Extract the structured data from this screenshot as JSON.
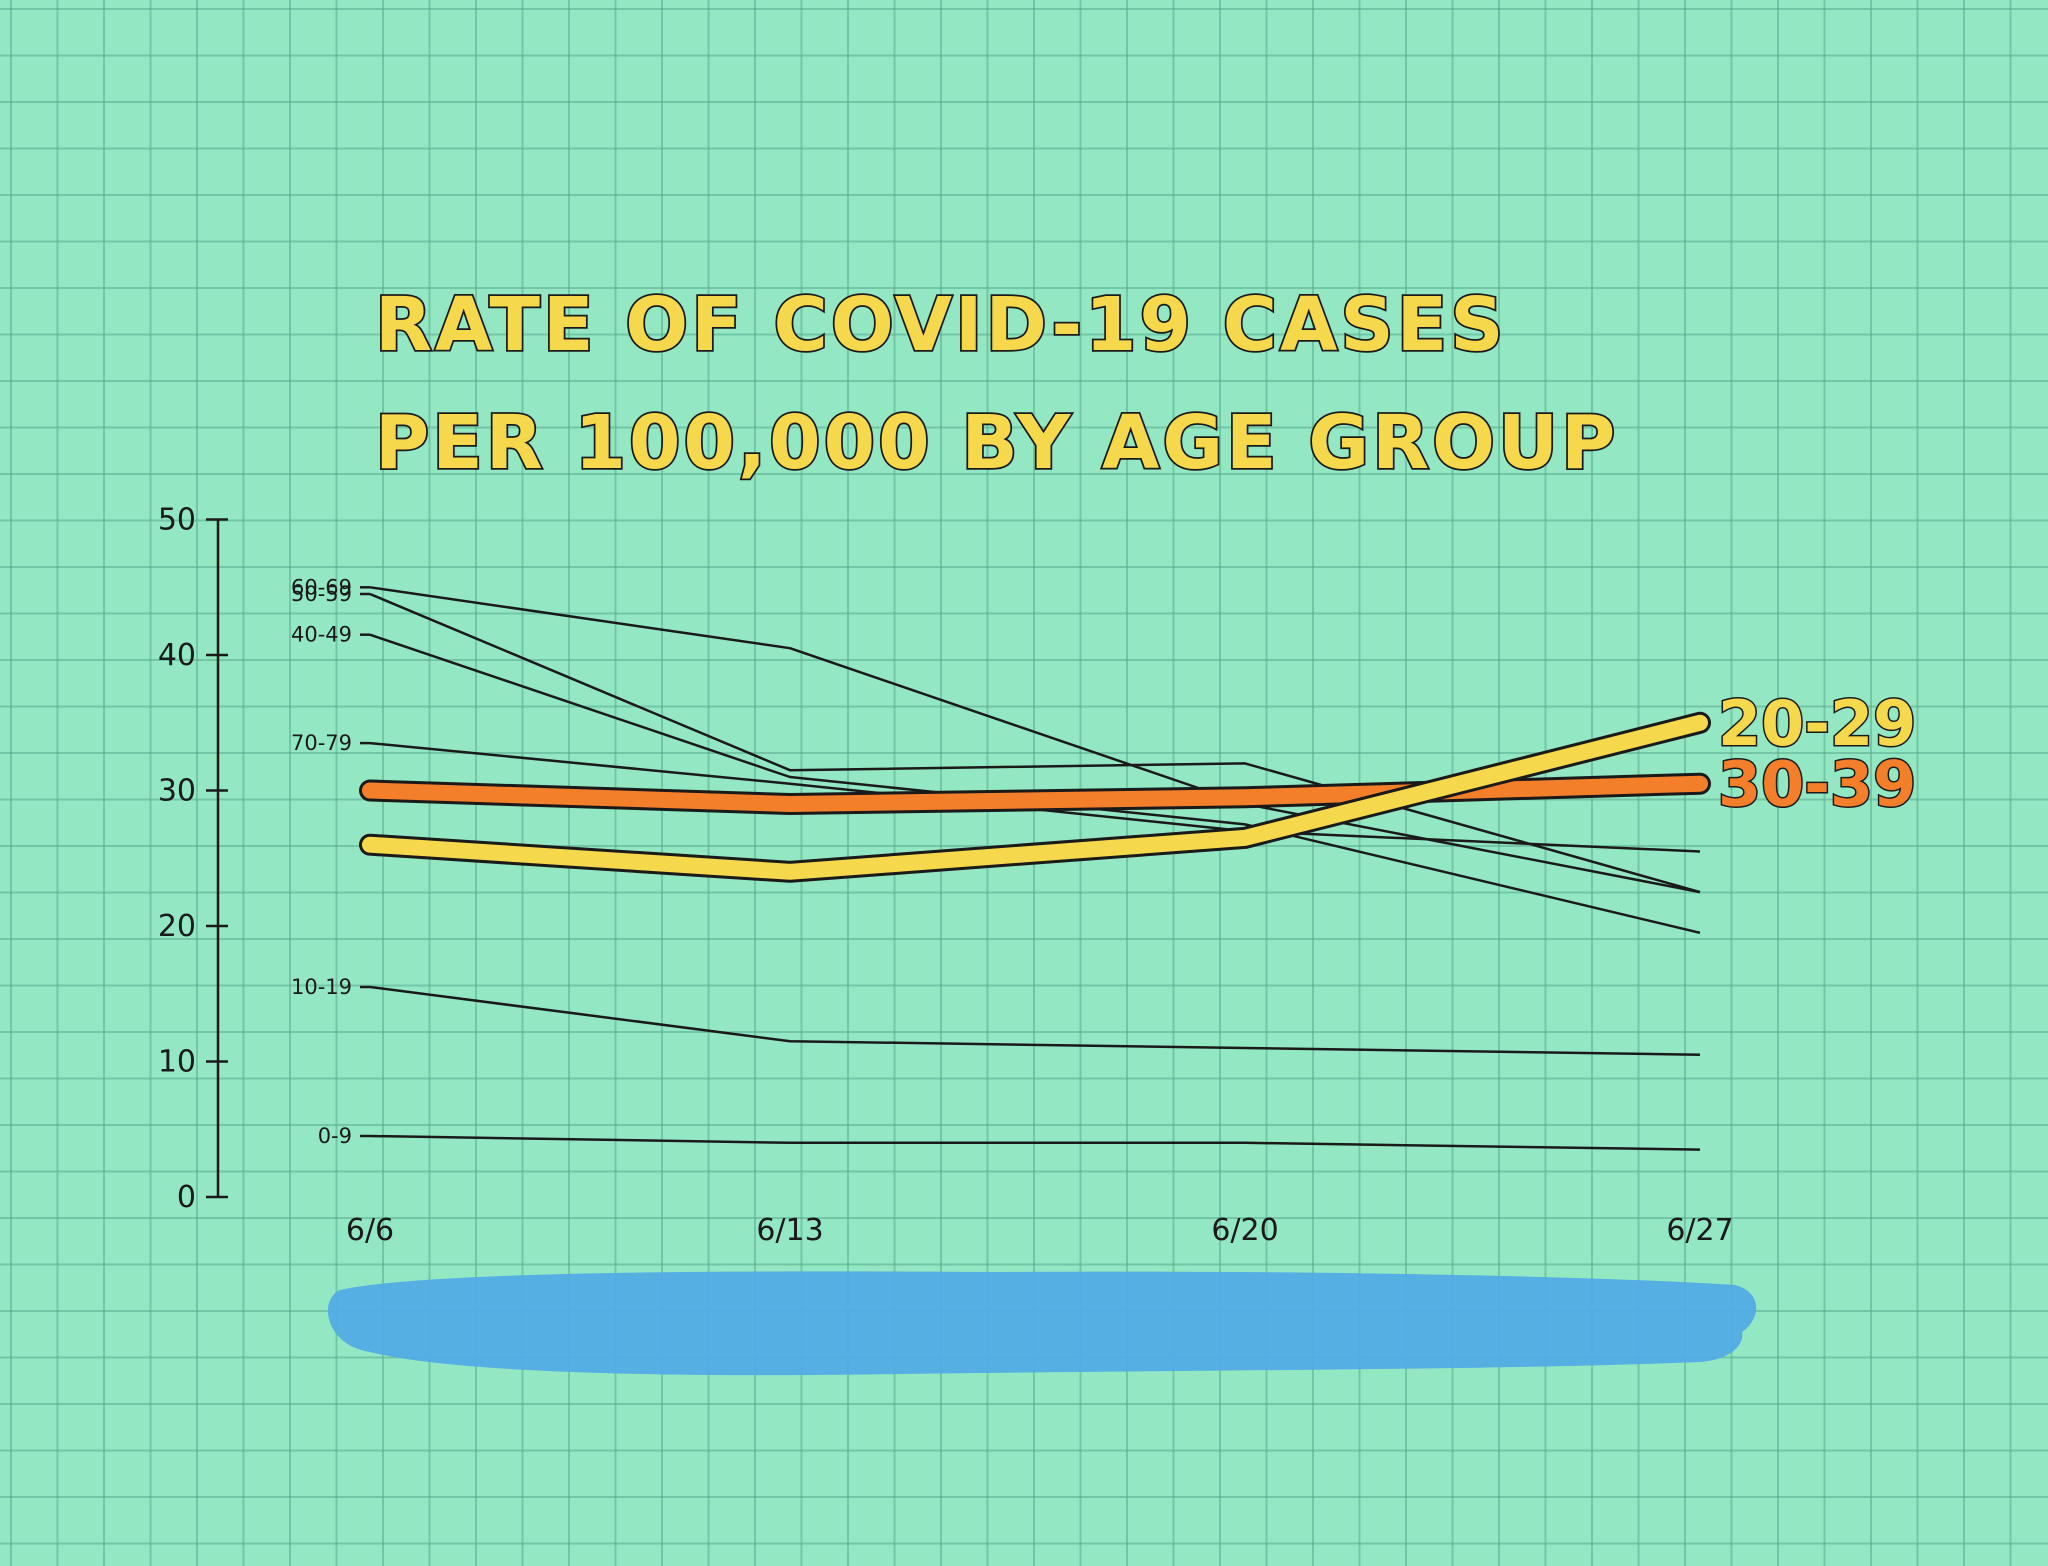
{
  "chart_data": {
    "type": "line",
    "title": [
      "RATE OF COVID-19 CASES",
      "PER 100,000 BY AGE GROUP"
    ],
    "categories": [
      "6/6",
      "6/13",
      "6/20",
      "6/27"
    ],
    "yticks": [
      "0",
      "10",
      "20",
      "30",
      "40",
      "50"
    ],
    "ylim": [
      0,
      50
    ],
    "grid": true,
    "series": [
      {
        "name": "60-69",
        "values": [
          45.0,
          40.5,
          29.0,
          22.5
        ],
        "color": "#1a1a1a",
        "emphasis": false
      },
      {
        "name": "50-59",
        "values": [
          44.5,
          31.5,
          32.0,
          22.5
        ],
        "color": "#1a1a1a",
        "emphasis": false
      },
      {
        "name": "40-49",
        "values": [
          41.5,
          31.0,
          27.5,
          19.5
        ],
        "color": "#1a1a1a",
        "emphasis": false
      },
      {
        "name": "70-79",
        "values": [
          33.5,
          30.5,
          27.0,
          25.5
        ],
        "color": "#1a1a1a",
        "emphasis": false
      },
      {
        "name": "10-19",
        "values": [
          15.5,
          11.5,
          11.0,
          10.5
        ],
        "color": "#1a1a1a",
        "emphasis": false
      },
      {
        "name": "0-9",
        "values": [
          4.5,
          4.0,
          4.0,
          3.5
        ],
        "color": "#1a1a1a",
        "emphasis": false
      },
      {
        "name": "30-39",
        "values": [
          30.0,
          29.0,
          29.5,
          30.5
        ],
        "color": "#f47f2a",
        "emphasis": true
      },
      {
        "name": "20-29",
        "values": [
          26.0,
          24.0,
          26.5,
          35.0
        ],
        "color": "#f6d84c",
        "emphasis": true
      }
    ]
  },
  "colors": {
    "paper": "#93e8c3",
    "grid": "#58aa8c",
    "paint_blob": "#52ace5",
    "title_fill": "#f6d84c",
    "ink": "#1a1a1a"
  }
}
